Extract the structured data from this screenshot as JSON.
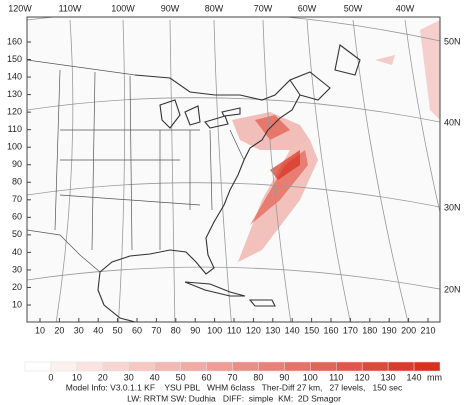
{
  "map": {
    "top_labels": [
      "120W",
      "110W",
      "100W",
      "90W",
      "80W",
      "70W",
      "60W",
      "50W",
      "40W"
    ],
    "right_labels": [
      "50N",
      "40N",
      "30N",
      "20N"
    ],
    "left_ticks": [
      10,
      20,
      30,
      40,
      50,
      60,
      70,
      80,
      90,
      100,
      110,
      120,
      130,
      140,
      150,
      160
    ],
    "bottom_ticks": [
      10,
      20,
      30,
      40,
      50,
      60,
      70,
      80,
      90,
      100,
      110,
      120,
      130,
      140,
      150,
      160,
      170,
      180,
      190,
      200,
      210
    ]
  },
  "colorbar": {
    "labels": [
      0,
      10,
      20,
      30,
      40,
      50,
      60,
      70,
      80,
      90,
      100,
      110,
      120,
      130,
      140
    ],
    "unit": "mm",
    "colors": [
      "#ffffff",
      "#fdf1f0",
      "#fbe3e1",
      "#f9d5d2",
      "#f7c7c3",
      "#f4b8b3",
      "#f2aaa4",
      "#ef9c95",
      "#ed8e86",
      "#ea8077",
      "#e87268",
      "#e56458",
      "#e35649",
      "#e0483a",
      "#de3a2c",
      "#d9301f"
    ]
  },
  "footer": {
    "line1": "Model Info: V3.0.1.1 KF    YSU PBL   WHM 6class   Ther-Diff 27 km,   27 levels,   150 sec",
    "line2": "LW: RRTM SW: Dudhia   DIFF:  simple  KM:  2D Smagor"
  }
}
